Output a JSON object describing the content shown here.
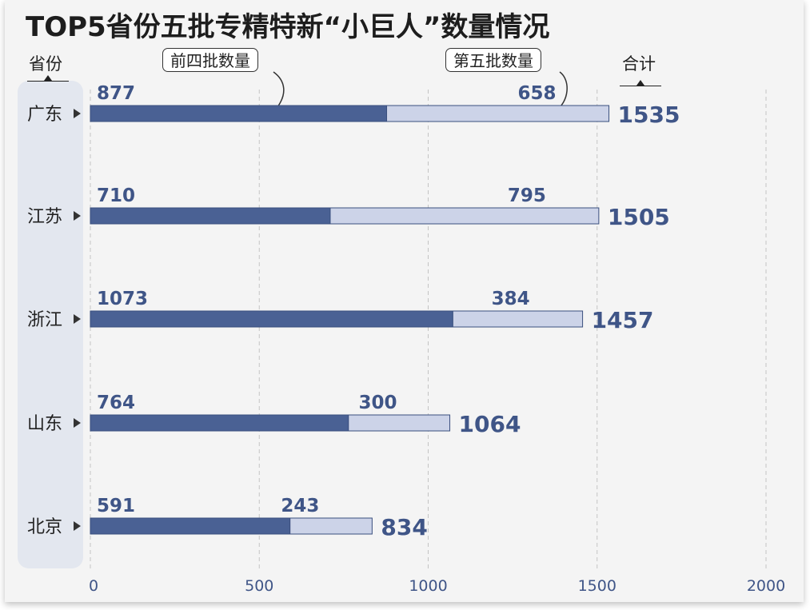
{
  "title": "TOP5省份五批专精特新“小巨人”数量情况",
  "headers": {
    "province": "省份",
    "total": "合计"
  },
  "legend": {
    "first_four": "前四批数量",
    "fifth": "第五批数量"
  },
  "colors": {
    "first_four": "#4a6194",
    "fifth": "#ccd3e8",
    "label": "#3f5587",
    "grid": "#c4c4c4",
    "panel": "#e3e7ef"
  },
  "chart_data": {
    "type": "bar",
    "orientation": "horizontal",
    "stacked": true,
    "title": "TOP5省份五批专精特新“小巨人”数量情况",
    "categories": [
      "广东",
      "江苏",
      "浙江",
      "山东",
      "北京"
    ],
    "series": [
      {
        "name": "前四批数量",
        "values": [
          877,
          710,
          1073,
          764,
          591
        ]
      },
      {
        "name": "第五批数量",
        "values": [
          658,
          795,
          384,
          300,
          243
        ]
      }
    ],
    "totals": [
      1535,
      1505,
      1457,
      1064,
      834
    ],
    "xlim": [
      0,
      2000
    ],
    "x_ticks": [
      "0",
      "500",
      "1000",
      "1500",
      "2000"
    ],
    "grid": "vertical-dashed"
  }
}
